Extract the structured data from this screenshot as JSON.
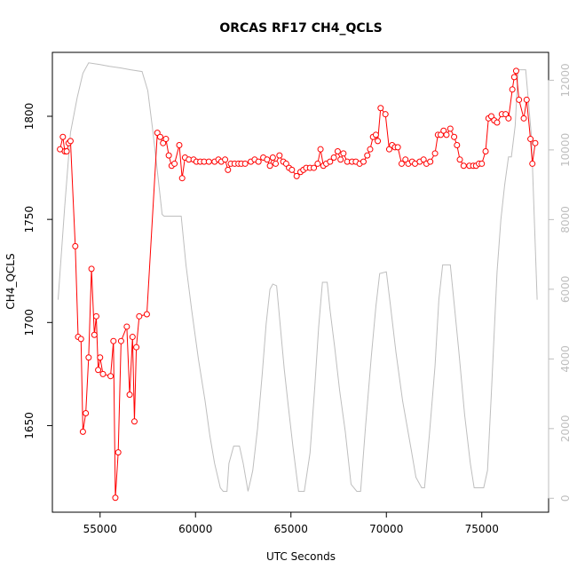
{
  "chart_data": {
    "type": "line",
    "title": "ORCAS RF17 CH4_QCLS",
    "xlabel": "UTC Seconds",
    "ylabel": "CH4_QCLS",
    "xlim": [
      52500,
      78500
    ],
    "ylim": [
      1608,
      1831
    ],
    "y2lim": [
      -400,
      12800
    ],
    "xticks": [
      55000,
      60000,
      65000,
      70000,
      75000
    ],
    "yticks": [
      1650,
      1700,
      1750,
      1800
    ],
    "y2ticks": [
      0,
      2000,
      4000,
      6000,
      8000,
      10000,
      12000
    ],
    "colors": {
      "primary": "#ff0000",
      "secondary": "#bebebe"
    },
    "series": [
      {
        "axis": "left",
        "style": "line+points",
        "points": [
          [
            52900,
            1784
          ],
          [
            53050,
            1790
          ],
          [
            53150,
            1783
          ],
          [
            53250,
            1783
          ],
          [
            53350,
            1787
          ],
          [
            53450,
            1788
          ],
          [
            53700,
            1737
          ],
          [
            53850,
            1693
          ],
          [
            54000,
            1692
          ],
          [
            54100,
            1647
          ],
          [
            54250,
            1656
          ],
          [
            54400,
            1683
          ],
          [
            54550,
            1726
          ],
          [
            54700,
            1694
          ],
          [
            54800,
            1703
          ],
          [
            54900,
            1677
          ],
          [
            55000,
            1683
          ],
          [
            55150,
            1675
          ],
          [
            55550,
            1674
          ],
          [
            55700,
            1691
          ],
          [
            55800,
            1615
          ],
          [
            55950,
            1637
          ],
          [
            56100,
            1691
          ],
          [
            56400,
            1698
          ],
          [
            56550,
            1665
          ],
          [
            56700,
            1693
          ],
          [
            56800,
            1652
          ],
          [
            56900,
            1688
          ],
          [
            57050,
            1703
          ],
          [
            57450,
            1704
          ],
          [
            58000,
            1792
          ],
          [
            58150,
            1790
          ],
          [
            58300,
            1787
          ],
          [
            58450,
            1789
          ],
          [
            58600,
            1781
          ],
          [
            58750,
            1776
          ],
          [
            58900,
            1777
          ],
          [
            59150,
            1786
          ],
          [
            59300,
            1770
          ],
          [
            59450,
            1780
          ],
          [
            59650,
            1779
          ],
          [
            59900,
            1779
          ],
          [
            60050,
            1778
          ],
          [
            60250,
            1778
          ],
          [
            60450,
            1778
          ],
          [
            60700,
            1778
          ],
          [
            61000,
            1778
          ],
          [
            61200,
            1779
          ],
          [
            61350,
            1778
          ],
          [
            61550,
            1779
          ],
          [
            61700,
            1774
          ],
          [
            61850,
            1777
          ],
          [
            62050,
            1777
          ],
          [
            62250,
            1777
          ],
          [
            62400,
            1777
          ],
          [
            62600,
            1777
          ],
          [
            62900,
            1778
          ],
          [
            63100,
            1779
          ],
          [
            63300,
            1778
          ],
          [
            63550,
            1780
          ],
          [
            63750,
            1779
          ],
          [
            63900,
            1776
          ],
          [
            64050,
            1780
          ],
          [
            64200,
            1777
          ],
          [
            64400,
            1781
          ],
          [
            64600,
            1778
          ],
          [
            64750,
            1777
          ],
          [
            64900,
            1775
          ],
          [
            65050,
            1774
          ],
          [
            65300,
            1771
          ],
          [
            65500,
            1773
          ],
          [
            65650,
            1774
          ],
          [
            65800,
            1775
          ],
          [
            66000,
            1775
          ],
          [
            66200,
            1775
          ],
          [
            66400,
            1777
          ],
          [
            66550,
            1784
          ],
          [
            66700,
            1776
          ],
          [
            66850,
            1777
          ],
          [
            67050,
            1778
          ],
          [
            67250,
            1780
          ],
          [
            67450,
            1783
          ],
          [
            67600,
            1779
          ],
          [
            67750,
            1782
          ],
          [
            67950,
            1778
          ],
          [
            68200,
            1778
          ],
          [
            68400,
            1778
          ],
          [
            68600,
            1777
          ],
          [
            68800,
            1778
          ],
          [
            69000,
            1781
          ],
          [
            69150,
            1784
          ],
          [
            69300,
            1790
          ],
          [
            69450,
            1791
          ],
          [
            69550,
            1788
          ],
          [
            69700,
            1804
          ],
          [
            69950,
            1801
          ],
          [
            70150,
            1784
          ],
          [
            70300,
            1786
          ],
          [
            70450,
            1785
          ],
          [
            70600,
            1785
          ],
          [
            70800,
            1777
          ],
          [
            71000,
            1779
          ],
          [
            71150,
            1777
          ],
          [
            71350,
            1778
          ],
          [
            71500,
            1777
          ],
          [
            71750,
            1778
          ],
          [
            71950,
            1779
          ],
          [
            72100,
            1777
          ],
          [
            72300,
            1778
          ],
          [
            72550,
            1782
          ],
          [
            72700,
            1791
          ],
          [
            72850,
            1791
          ],
          [
            73000,
            1793
          ],
          [
            73150,
            1791
          ],
          [
            73350,
            1794
          ],
          [
            73550,
            1790
          ],
          [
            73700,
            1786
          ],
          [
            73850,
            1779
          ],
          [
            74050,
            1776
          ],
          [
            74350,
            1776
          ],
          [
            74550,
            1776
          ],
          [
            74700,
            1776
          ],
          [
            74850,
            1777
          ],
          [
            75000,
            1777
          ],
          [
            75200,
            1783
          ],
          [
            75350,
            1799
          ],
          [
            75500,
            1800
          ],
          [
            75650,
            1798
          ],
          [
            75800,
            1797
          ],
          [
            76050,
            1801
          ],
          [
            76250,
            1801
          ],
          [
            76400,
            1799
          ],
          [
            76600,
            1813
          ],
          [
            76700,
            1819
          ],
          [
            76800,
            1822
          ],
          [
            76950,
            1808
          ],
          [
            77200,
            1799
          ],
          [
            77350,
            1808
          ],
          [
            77550,
            1789
          ],
          [
            77650,
            1777
          ],
          [
            77800,
            1787
          ]
        ]
      },
      {
        "axis": "right",
        "style": "line",
        "points": [
          [
            52800,
            5700
          ],
          [
            53150,
            8400
          ],
          [
            53450,
            10500
          ],
          [
            53800,
            11500
          ],
          [
            54100,
            12200
          ],
          [
            54400,
            12500
          ],
          [
            55000,
            12450
          ],
          [
            55500,
            12400
          ],
          [
            56100,
            12350
          ],
          [
            56600,
            12300
          ],
          [
            57200,
            12250
          ],
          [
            57500,
            11700
          ],
          [
            57750,
            10600
          ],
          [
            58000,
            9400
          ],
          [
            58250,
            8150
          ],
          [
            58350,
            8100
          ],
          [
            58750,
            8100
          ],
          [
            59250,
            8100
          ],
          [
            59500,
            6700
          ],
          [
            59800,
            5400
          ],
          [
            60150,
            4000
          ],
          [
            60500,
            2800
          ],
          [
            60750,
            1800
          ],
          [
            61000,
            1000
          ],
          [
            61300,
            300
          ],
          [
            61450,
            200
          ],
          [
            61650,
            200
          ],
          [
            61750,
            1000
          ],
          [
            62000,
            1500
          ],
          [
            62300,
            1500
          ],
          [
            62500,
            1000
          ],
          [
            62750,
            200
          ],
          [
            62900,
            550
          ],
          [
            63000,
            800
          ],
          [
            63250,
            2000
          ],
          [
            63500,
            3600
          ],
          [
            63700,
            5000
          ],
          [
            63900,
            6000
          ],
          [
            64050,
            6150
          ],
          [
            64250,
            6100
          ],
          [
            64400,
            5200
          ],
          [
            64650,
            3700
          ],
          [
            64850,
            2700
          ],
          [
            65100,
            1500
          ],
          [
            65400,
            200
          ],
          [
            65700,
            200
          ],
          [
            66000,
            1300
          ],
          [
            66250,
            3200
          ],
          [
            66450,
            4900
          ],
          [
            66650,
            6200
          ],
          [
            66900,
            6200
          ],
          [
            67050,
            5400
          ],
          [
            67300,
            4300
          ],
          [
            67550,
            3100
          ],
          [
            67850,
            1900
          ],
          [
            68150,
            400
          ],
          [
            68450,
            200
          ],
          [
            68650,
            200
          ],
          [
            68900,
            2000
          ],
          [
            69200,
            4000
          ],
          [
            69450,
            5500
          ],
          [
            69650,
            6450
          ],
          [
            70000,
            6500
          ],
          [
            70200,
            5600
          ],
          [
            70500,
            4200
          ],
          [
            70850,
            2800
          ],
          [
            71300,
            1400
          ],
          [
            71550,
            600
          ],
          [
            71850,
            300
          ],
          [
            72000,
            300
          ],
          [
            72250,
            1800
          ],
          [
            72550,
            3800
          ],
          [
            72750,
            5700
          ],
          [
            72950,
            6700
          ],
          [
            73100,
            6700
          ],
          [
            73350,
            6700
          ],
          [
            73550,
            5600
          ],
          [
            73800,
            4200
          ],
          [
            74100,
            2400
          ],
          [
            74400,
            1000
          ],
          [
            74600,
            300
          ],
          [
            74900,
            300
          ],
          [
            75100,
            300
          ],
          [
            75300,
            800
          ],
          [
            75500,
            3000
          ],
          [
            75800,
            6500
          ],
          [
            76000,
            8000
          ],
          [
            76200,
            9000
          ],
          [
            76400,
            9800
          ],
          [
            76550,
            9800
          ],
          [
            76750,
            10700
          ],
          [
            76900,
            12300
          ],
          [
            77300,
            12300
          ],
          [
            77600,
            10400
          ],
          [
            77900,
            5700
          ]
        ]
      }
    ]
  }
}
